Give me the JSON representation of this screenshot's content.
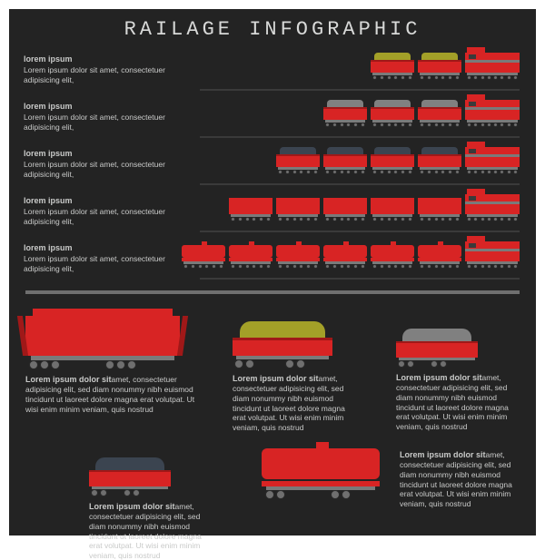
{
  "title": "RAILAGE INFOGRAPHIC",
  "colors": {
    "background": "#232323",
    "primary_red": "#d82424",
    "dark_red": "#a01818",
    "text": "#c9cac9",
    "title_text": "#d8d9d8",
    "grey": "#6f6f6f",
    "divider": "#6f6f6f",
    "cargo_yellow": "#a3a028",
    "cargo_grey": "#808080",
    "cargo_dark": "#3b4450"
  },
  "rows": [
    {
      "heading": "lorem ipsum",
      "body": "Lorem ipsum dolor sit amet, consectetuer adipisicing elit,",
      "cars": [
        {
          "type": "open",
          "cargo": "#a3a028"
        },
        {
          "type": "open",
          "cargo": "#a3a028"
        }
      ]
    },
    {
      "heading": "lorem ipsum",
      "body": "Lorem ipsum dolor sit amet, consectetuer adipisicing elit,",
      "cars": [
        {
          "type": "open",
          "cargo": "#808080"
        },
        {
          "type": "open",
          "cargo": "#808080"
        },
        {
          "type": "open",
          "cargo": "#808080"
        }
      ]
    },
    {
      "heading": "lorem ipsum",
      "body": "Lorem ipsum dolor sit amet, consectetuer adipisicing elit,",
      "cars": [
        {
          "type": "open",
          "cargo": "#3b4450"
        },
        {
          "type": "open",
          "cargo": "#3b4450"
        },
        {
          "type": "open",
          "cargo": "#3b4450"
        },
        {
          "type": "open",
          "cargo": "#3b4450"
        }
      ]
    },
    {
      "heading": "lorem ipsum",
      "body": "Lorem ipsum dolor sit amet, consectetuer adipisicing elit,",
      "cars": [
        {
          "type": "hopper"
        },
        {
          "type": "hopper"
        },
        {
          "type": "hopper"
        },
        {
          "type": "hopper"
        },
        {
          "type": "hopper"
        }
      ]
    },
    {
      "heading": "lorem ipsum",
      "body": "Lorem ipsum dolor sit amet, consectetuer adipisicing elit,",
      "cars": [
        {
          "type": "tank"
        },
        {
          "type": "tank"
        },
        {
          "type": "tank"
        },
        {
          "type": "tank"
        },
        {
          "type": "tank"
        },
        {
          "type": "tank"
        }
      ]
    }
  ],
  "details": [
    {
      "id": "hopper-large",
      "heading": "Lorem ipsum dolor sit",
      "body": "amet, consectetuer adipisicing elit, sed diam nonummy nibh euismod tincidunt ut laoreet dolore magna erat volutpat. Ut wisi enim minim veniam, quis nostrud"
    },
    {
      "id": "open-yellow",
      "heading": "Lorem ipsum dolor sit",
      "body": "amet, consectetuer adipisicing elit, sed diam nonummy nibh euismod tincidunt ut laoreet dolore magna erat volutpat. Ut wisi enim minim veniam, quis nostrud",
      "cargo": "#a3a028"
    },
    {
      "id": "open-grey",
      "heading": "Lorem ipsum dolor sit",
      "body": "amet, consectetuer adipisicing elit, sed diam nonummy nibh euismod tincidunt ut laoreet dolore magna erat volutpat. Ut wisi enim minim veniam, quis nostrud",
      "cargo": "#808080"
    },
    {
      "id": "open-dark",
      "heading": "Lorem ipsum dolor sit",
      "body": "amet, consectetuer adipisicing elit, sed diam nonummy nibh euismod tincidunt ut laoreet dolore magna erat volutpat. Ut wisi enim minim veniam, quis nostrud",
      "cargo": "#3b4450"
    },
    {
      "id": "tank-large",
      "heading": "Lorem ipsum dolor sit",
      "body": "amet, consectetuer adipisicing elit, sed diam nonummy nibh euismod tincidunt ut laoreet dolore magna erat volutpat. Ut wisi enim minim veniam, quis nostrud"
    }
  ]
}
